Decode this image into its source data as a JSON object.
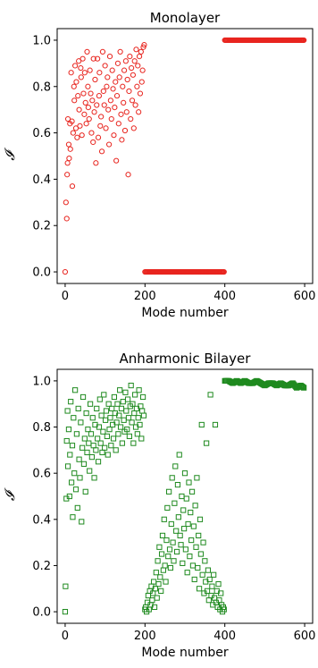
{
  "chart_data": [
    {
      "type": "scatter",
      "title": "Monolayer",
      "xlabel": "Mode number",
      "ylabel": "𝓘",
      "xlim": [
        -20,
        620
      ],
      "ylim": [
        -0.05,
        1.05
      ],
      "xticks": [
        0,
        200,
        400,
        600
      ],
      "xtick_labels": [
        "0",
        "200",
        "400",
        "600"
      ],
      "yticks": [
        0.0,
        0.2,
        0.4,
        0.6,
        0.8,
        1.0
      ],
      "ytick_labels": [
        "0.0",
        "0.2",
        "0.4",
        "0.6",
        "0.8",
        "1.0"
      ],
      "marker": "circle",
      "color": "#e8251f",
      "series": [
        {
          "segment": "modes 0-200",
          "x": [
            0,
            2,
            4,
            5,
            6,
            7,
            9,
            10,
            12,
            13,
            15,
            17,
            18,
            20,
            22,
            23,
            25,
            27,
            28,
            30,
            32,
            34,
            35,
            37,
            39,
            40,
            42,
            44,
            46,
            48,
            49,
            51,
            53,
            55,
            57,
            58,
            60,
            62,
            64,
            66,
            68,
            70,
            71,
            73,
            75,
            77,
            79,
            81,
            83,
            85,
            86,
            88,
            90,
            92,
            94,
            96,
            98,
            100,
            102,
            104,
            106,
            108,
            110,
            112,
            114,
            116,
            118,
            120,
            122,
            124,
            126,
            128,
            130,
            132,
            134,
            136,
            138,
            140,
            142,
            144,
            146,
            148,
            150,
            152,
            154,
            156,
            158,
            160,
            162,
            164,
            166,
            168,
            170,
            172,
            174,
            176,
            178,
            180,
            182,
            184,
            186,
            188,
            190,
            192,
            194,
            196,
            198
          ],
          "y": [
            0.0,
            0.3,
            0.23,
            0.42,
            0.47,
            0.66,
            0.55,
            0.49,
            0.64,
            0.53,
            0.86,
            0.65,
            0.37,
            0.6,
            0.8,
            0.74,
            0.89,
            0.62,
            0.82,
            0.58,
            0.76,
            0.91,
            0.7,
            0.63,
            0.88,
            0.84,
            0.59,
            0.92,
            0.77,
            0.68,
            0.86,
            0.73,
            0.64,
            0.95,
            0.8,
            0.71,
            0.66,
            0.87,
            0.77,
            0.6,
            0.74,
            0.56,
            0.92,
            0.69,
            0.83,
            0.47,
            0.72,
            0.92,
            0.58,
            0.76,
            0.86,
            0.63,
            0.67,
            0.52,
            0.95,
            0.78,
            0.72,
            0.89,
            0.62,
            0.8,
            0.84,
            0.7,
            0.55,
            0.93,
            0.74,
            0.66,
            0.87,
            0.79,
            0.59,
            0.71,
            0.82,
            0.48,
            0.76,
            0.9,
            0.64,
            0.84,
            0.95,
            0.68,
            0.57,
            0.8,
            0.73,
            0.87,
            0.61,
            0.91,
            0.69,
            0.83,
            0.42,
            0.78,
            0.93,
            0.66,
            0.88,
            0.74,
            0.85,
            0.62,
            0.91,
            0.72,
            0.96,
            0.8,
            0.89,
            0.69,
            0.93,
            0.77,
            0.95,
            0.82,
            0.87,
            0.97,
            0.98
          ]
        },
        {
          "segment": "modes 200-400",
          "x": [
            200,
            210,
            220,
            230,
            240,
            250,
            260,
            270,
            280,
            290,
            300,
            310,
            320,
            330,
            340,
            350,
            360,
            370,
            380,
            390,
            398
          ],
          "y": [
            0.0,
            0.0,
            0.0,
            0.0,
            0.0,
            0.0,
            0.0,
            0.0,
            0.0,
            0.0,
            0.0,
            0.0,
            0.0,
            0.0,
            0.0,
            0.0,
            0.0,
            0.0,
            0.0,
            0.0,
            0.0
          ]
        },
        {
          "segment": "modes 400-600",
          "x": [
            400,
            410,
            420,
            430,
            440,
            450,
            460,
            470,
            480,
            490,
            500,
            510,
            520,
            530,
            540,
            550,
            560,
            570,
            580,
            590,
            598
          ],
          "y": [
            1.0,
            1.0,
            1.0,
            1.0,
            1.0,
            1.0,
            1.0,
            1.0,
            1.0,
            1.0,
            1.0,
            1.0,
            1.0,
            1.0,
            1.0,
            1.0,
            1.0,
            1.0,
            1.0,
            1.0,
            1.0
          ]
        }
      ]
    },
    {
      "type": "scatter",
      "title": "Anharmonic Bilayer",
      "xlabel": "Mode number",
      "ylabel": "𝓘",
      "xlim": [
        -20,
        620
      ],
      "ylim": [
        -0.05,
        1.05
      ],
      "xticks": [
        0,
        200,
        400,
        600
      ],
      "xtick_labels": [
        "0",
        "200",
        "400",
        "600"
      ],
      "yticks": [
        0.0,
        0.2,
        0.4,
        0.6,
        0.8,
        1.0
      ],
      "ytick_labels": [
        "0.0",
        "0.2",
        "0.4",
        "0.6",
        "0.8",
        "1.0"
      ],
      "marker": "square",
      "color": "#1f8a1f",
      "series": [
        {
          "segment": "modes 0-200",
          "x": [
            0,
            1,
            3,
            4,
            6,
            7,
            9,
            11,
            12,
            14,
            16,
            18,
            19,
            21,
            23,
            25,
            27,
            29,
            31,
            33,
            35,
            37,
            39,
            41,
            43,
            45,
            47,
            49,
            51,
            53,
            55,
            57,
            59,
            61,
            63,
            65,
            67,
            69,
            71,
            73,
            75,
            77,
            79,
            81,
            83,
            85,
            87,
            89,
            91,
            93,
            95,
            97,
            99,
            101,
            103,
            105,
            107,
            109,
            111,
            113,
            115,
            117,
            119,
            121,
            123,
            125,
            127,
            129,
            131,
            133,
            135,
            137,
            139,
            141,
            143,
            145,
            147,
            149,
            151,
            153,
            155,
            157,
            159,
            161,
            163,
            165,
            167,
            169,
            171,
            173,
            175,
            177,
            179,
            181,
            183,
            185,
            187,
            189,
            191,
            193,
            195,
            197
          ],
          "y": [
            0.0,
            0.11,
            0.49,
            0.74,
            0.87,
            0.63,
            0.79,
            0.5,
            0.68,
            0.91,
            0.56,
            0.72,
            0.41,
            0.84,
            0.6,
            0.96,
            0.53,
            0.77,
            0.45,
            0.88,
            0.66,
            0.58,
            0.82,
            0.39,
            0.71,
            0.93,
            0.64,
            0.75,
            0.52,
            0.86,
            0.69,
            0.79,
            0.73,
            0.61,
            0.9,
            0.77,
            0.67,
            0.84,
            0.72,
            0.58,
            0.81,
            0.7,
            0.88,
            0.75,
            0.65,
            0.8,
            0.92,
            0.73,
            0.85,
            0.69,
            0.78,
            0.94,
            0.71,
            0.83,
            0.87,
            0.76,
            0.68,
            0.9,
            0.79,
            0.84,
            0.72,
            0.88,
            0.81,
            0.75,
            0.93,
            0.86,
            0.7,
            0.82,
            0.9,
            0.77,
            0.85,
            0.96,
            0.8,
            0.88,
            0.73,
            0.91,
            0.83,
            0.78,
            0.95,
            0.87,
            0.79,
            0.92,
            0.84,
            0.76,
            0.89,
            0.98,
            0.82,
            0.9,
            0.73,
            0.86,
            0.94,
            0.8,
            0.88,
            0.77,
            0.84,
            0.96,
            0.81,
            0.89,
            0.75,
            0.87,
            0.93,
            0.85
          ]
        },
        {
          "segment": "modes 200-400",
          "x": [
            200,
            202,
            204,
            206,
            208,
            210,
            212,
            214,
            216,
            218,
            220,
            222,
            224,
            226,
            228,
            230,
            232,
            234,
            236,
            238,
            240,
            242,
            244,
            246,
            248,
            250,
            252,
            254,
            256,
            258,
            260,
            262,
            264,
            266,
            268,
            270,
            272,
            274,
            276,
            278,
            280,
            282,
            284,
            286,
            288,
            290,
            292,
            294,
            296,
            298,
            300,
            302,
            304,
            306,
            308,
            310,
            312,
            314,
            316,
            318,
            320,
            322,
            324,
            326,
            328,
            330,
            332,
            334,
            336,
            338,
            340,
            342,
            344,
            346,
            348,
            350,
            352,
            354,
            356,
            358,
            360,
            362,
            364,
            366,
            368,
            370,
            372,
            374,
            376,
            378,
            380,
            382,
            384,
            386,
            388,
            390,
            392,
            394,
            396,
            398
          ],
          "y": [
            0.01,
            0.02,
            0.0,
            0.04,
            0.07,
            0.01,
            0.09,
            0.03,
            0.11,
            0.05,
            0.08,
            0.13,
            0.02,
            0.1,
            0.17,
            0.06,
            0.22,
            0.12,
            0.28,
            0.15,
            0.09,
            0.25,
            0.33,
            0.18,
            0.4,
            0.2,
            0.13,
            0.31,
            0.45,
            0.24,
            0.52,
            0.27,
            0.19,
            0.38,
            0.58,
            0.3,
            0.22,
            0.47,
            0.63,
            0.35,
            0.26,
            0.55,
            0.41,
            0.68,
            0.33,
            0.29,
            0.5,
            0.21,
            0.44,
            0.36,
            0.6,
            0.27,
            0.49,
            0.17,
            0.38,
            0.56,
            0.24,
            0.43,
            0.31,
            0.52,
            0.2,
            0.37,
            0.14,
            0.46,
            0.28,
            0.58,
            0.19,
            0.33,
            0.1,
            0.4,
            0.25,
            0.81,
            0.16,
            0.3,
            0.08,
            0.22,
            0.13,
            0.73,
            0.09,
            0.18,
            0.05,
            0.14,
            0.94,
            0.07,
            0.11,
            0.03,
            0.16,
            0.06,
            0.81,
            0.04,
            0.09,
            0.02,
            0.12,
            0.05,
            0.01,
            0.08,
            0.03,
            0.0,
            0.02,
            0.01
          ]
        },
        {
          "segment": "modes 400-600",
          "x": [
            400,
            410,
            420,
            430,
            440,
            450,
            460,
            470,
            480,
            490,
            500,
            510,
            520,
            530,
            540,
            550,
            560,
            570,
            580,
            590,
            598
          ],
          "y": [
            1.0,
            1.0,
            0.99,
            1.0,
            0.99,
            1.0,
            0.99,
            0.99,
            1.0,
            0.99,
            0.98,
            0.99,
            0.99,
            0.98,
            0.99,
            0.98,
            0.98,
            0.99,
            0.97,
            0.98,
            0.97
          ]
        }
      ]
    }
  ]
}
